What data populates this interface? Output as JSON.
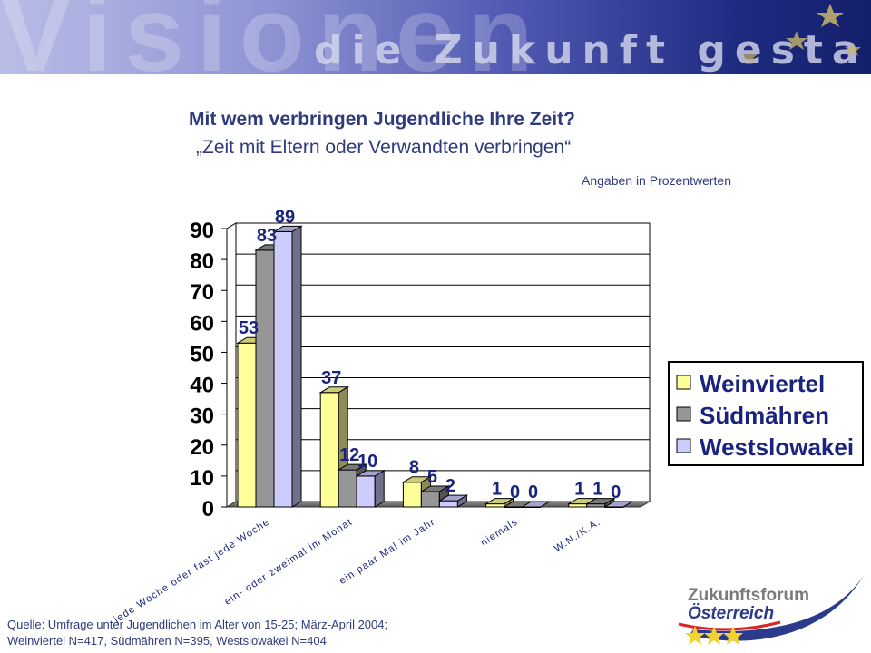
{
  "banner": {
    "word": "Visionen",
    "tagline": "die Zukunft gestalten"
  },
  "title": "Mit wem verbringen Jugendliche Ihre Zeit?",
  "subtitle": "„Zeit mit Eltern oder Verwandten verbringen“",
  "units_note": "Angaben in  Prozentwerten",
  "source": {
    "line1": "Quelle: Umfrage unter Jugendlichen im Alter von 15-25; März-April 2004;",
    "line2": "Weinviertel N=417, Südmähren N=395, Westslowakei N=404"
  },
  "logo": {
    "line1": "Zukunftsforum",
    "line2": "Österreich"
  },
  "chart_data": {
    "type": "bar",
    "title": "",
    "xlabel": "",
    "ylabel": "",
    "ylim": [
      0,
      90
    ],
    "yticks": [
      0,
      10,
      20,
      30,
      40,
      50,
      60,
      70,
      80,
      90
    ],
    "grid": true,
    "legend_position": "right",
    "categories": [
      "jede Woche oder fast jede Woche",
      "ein- oder zweimal im Monat",
      "ein paar Mal im Jahr",
      "niemals",
      "W.N./K.A."
    ],
    "series": [
      {
        "name": "Weinviertel",
        "color": "#ffff99",
        "values": [
          53,
          37,
          8,
          1,
          1
        ]
      },
      {
        "name": "Südmähren",
        "color": "#969696",
        "values": [
          83,
          12,
          5,
          0,
          1
        ]
      },
      {
        "name": "Westslowakei",
        "color": "#ccccff",
        "values": [
          89,
          10,
          2,
          0,
          0
        ]
      }
    ]
  }
}
